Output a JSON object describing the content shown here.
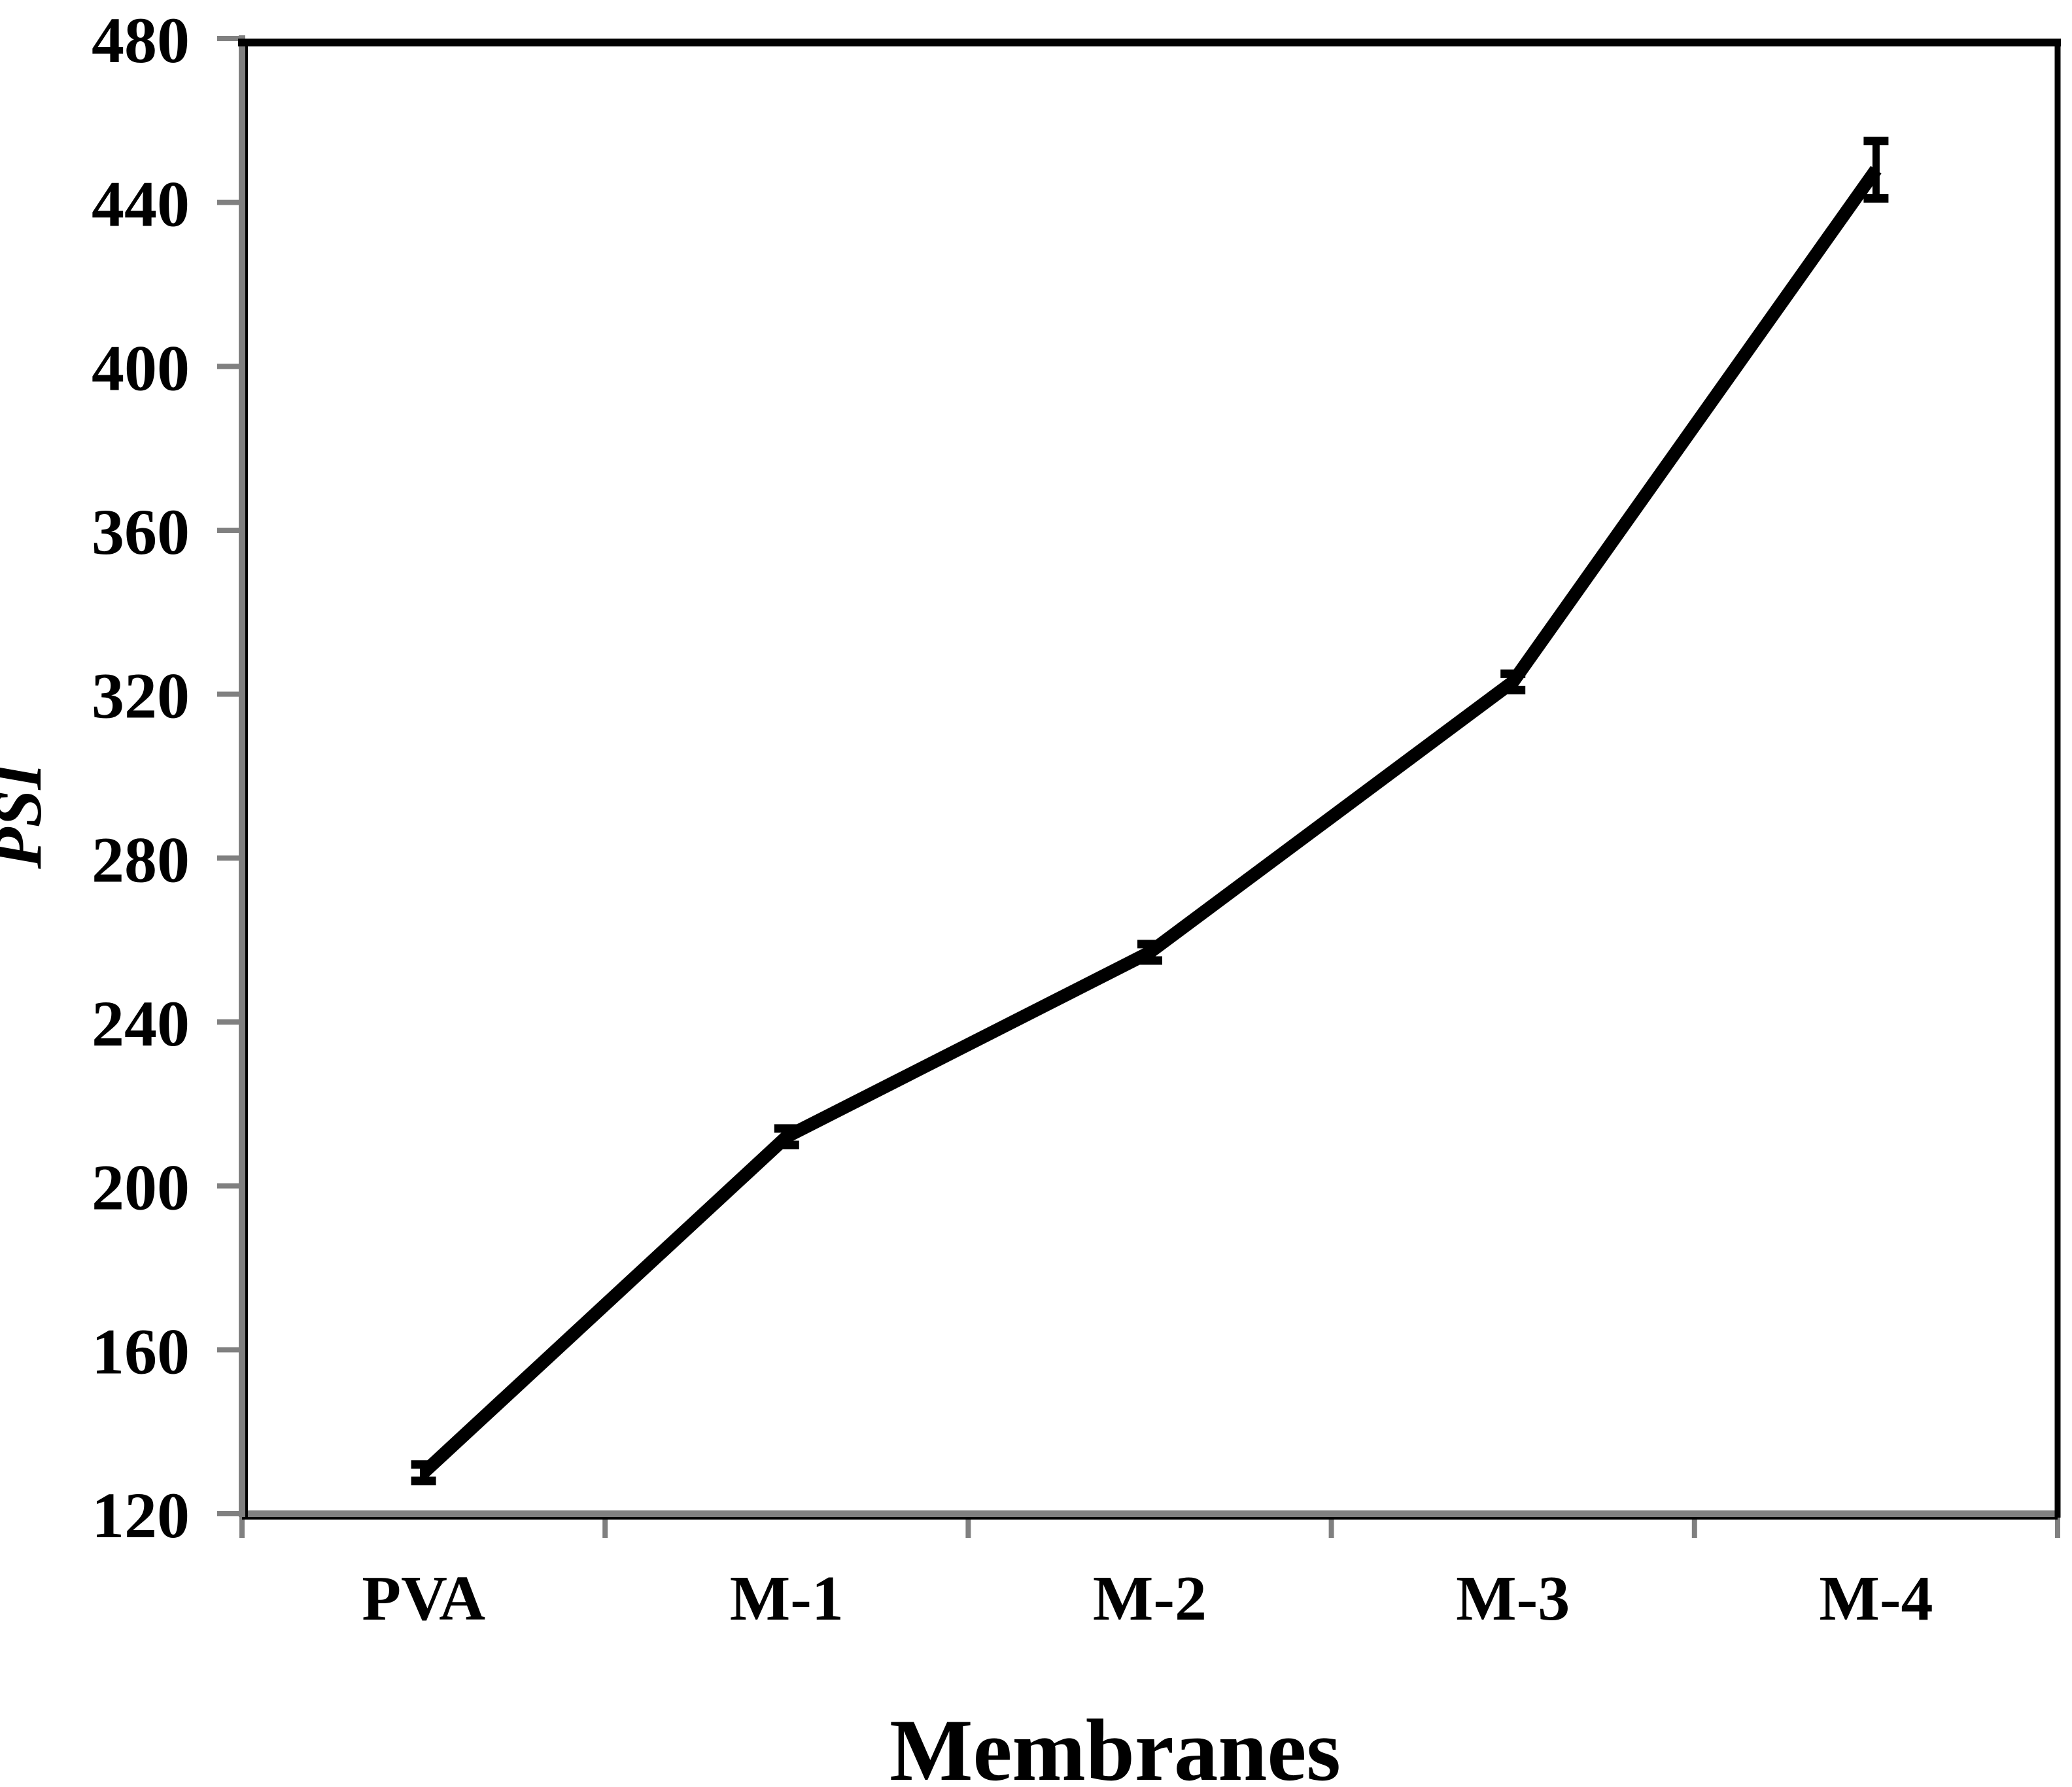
{
  "chart_data": {
    "type": "line",
    "title": "",
    "xlabel": "Membranes",
    "ylabel": "PSI",
    "categories": [
      "PVA",
      "M-1",
      "M-2",
      "M-3",
      "M-4"
    ],
    "series": [
      {
        "name": "PSI",
        "values": [
          130,
          212,
          257,
          323,
          448
        ],
        "error_bars": [
          2,
          2,
          2,
          2,
          7
        ]
      }
    ],
    "ylim": [
      120,
      480
    ],
    "yticks": [
      120,
      160,
      200,
      240,
      280,
      320,
      360,
      400,
      440,
      480
    ],
    "ytick_step": 40,
    "grid": false,
    "legend": "none",
    "marker": "error-bar-caps"
  },
  "colors": {
    "line": "#000000",
    "error_bar": "#000000",
    "axis": "#808080",
    "plot_border": "#000000",
    "text": "#000000",
    "background": "#ffffff"
  }
}
